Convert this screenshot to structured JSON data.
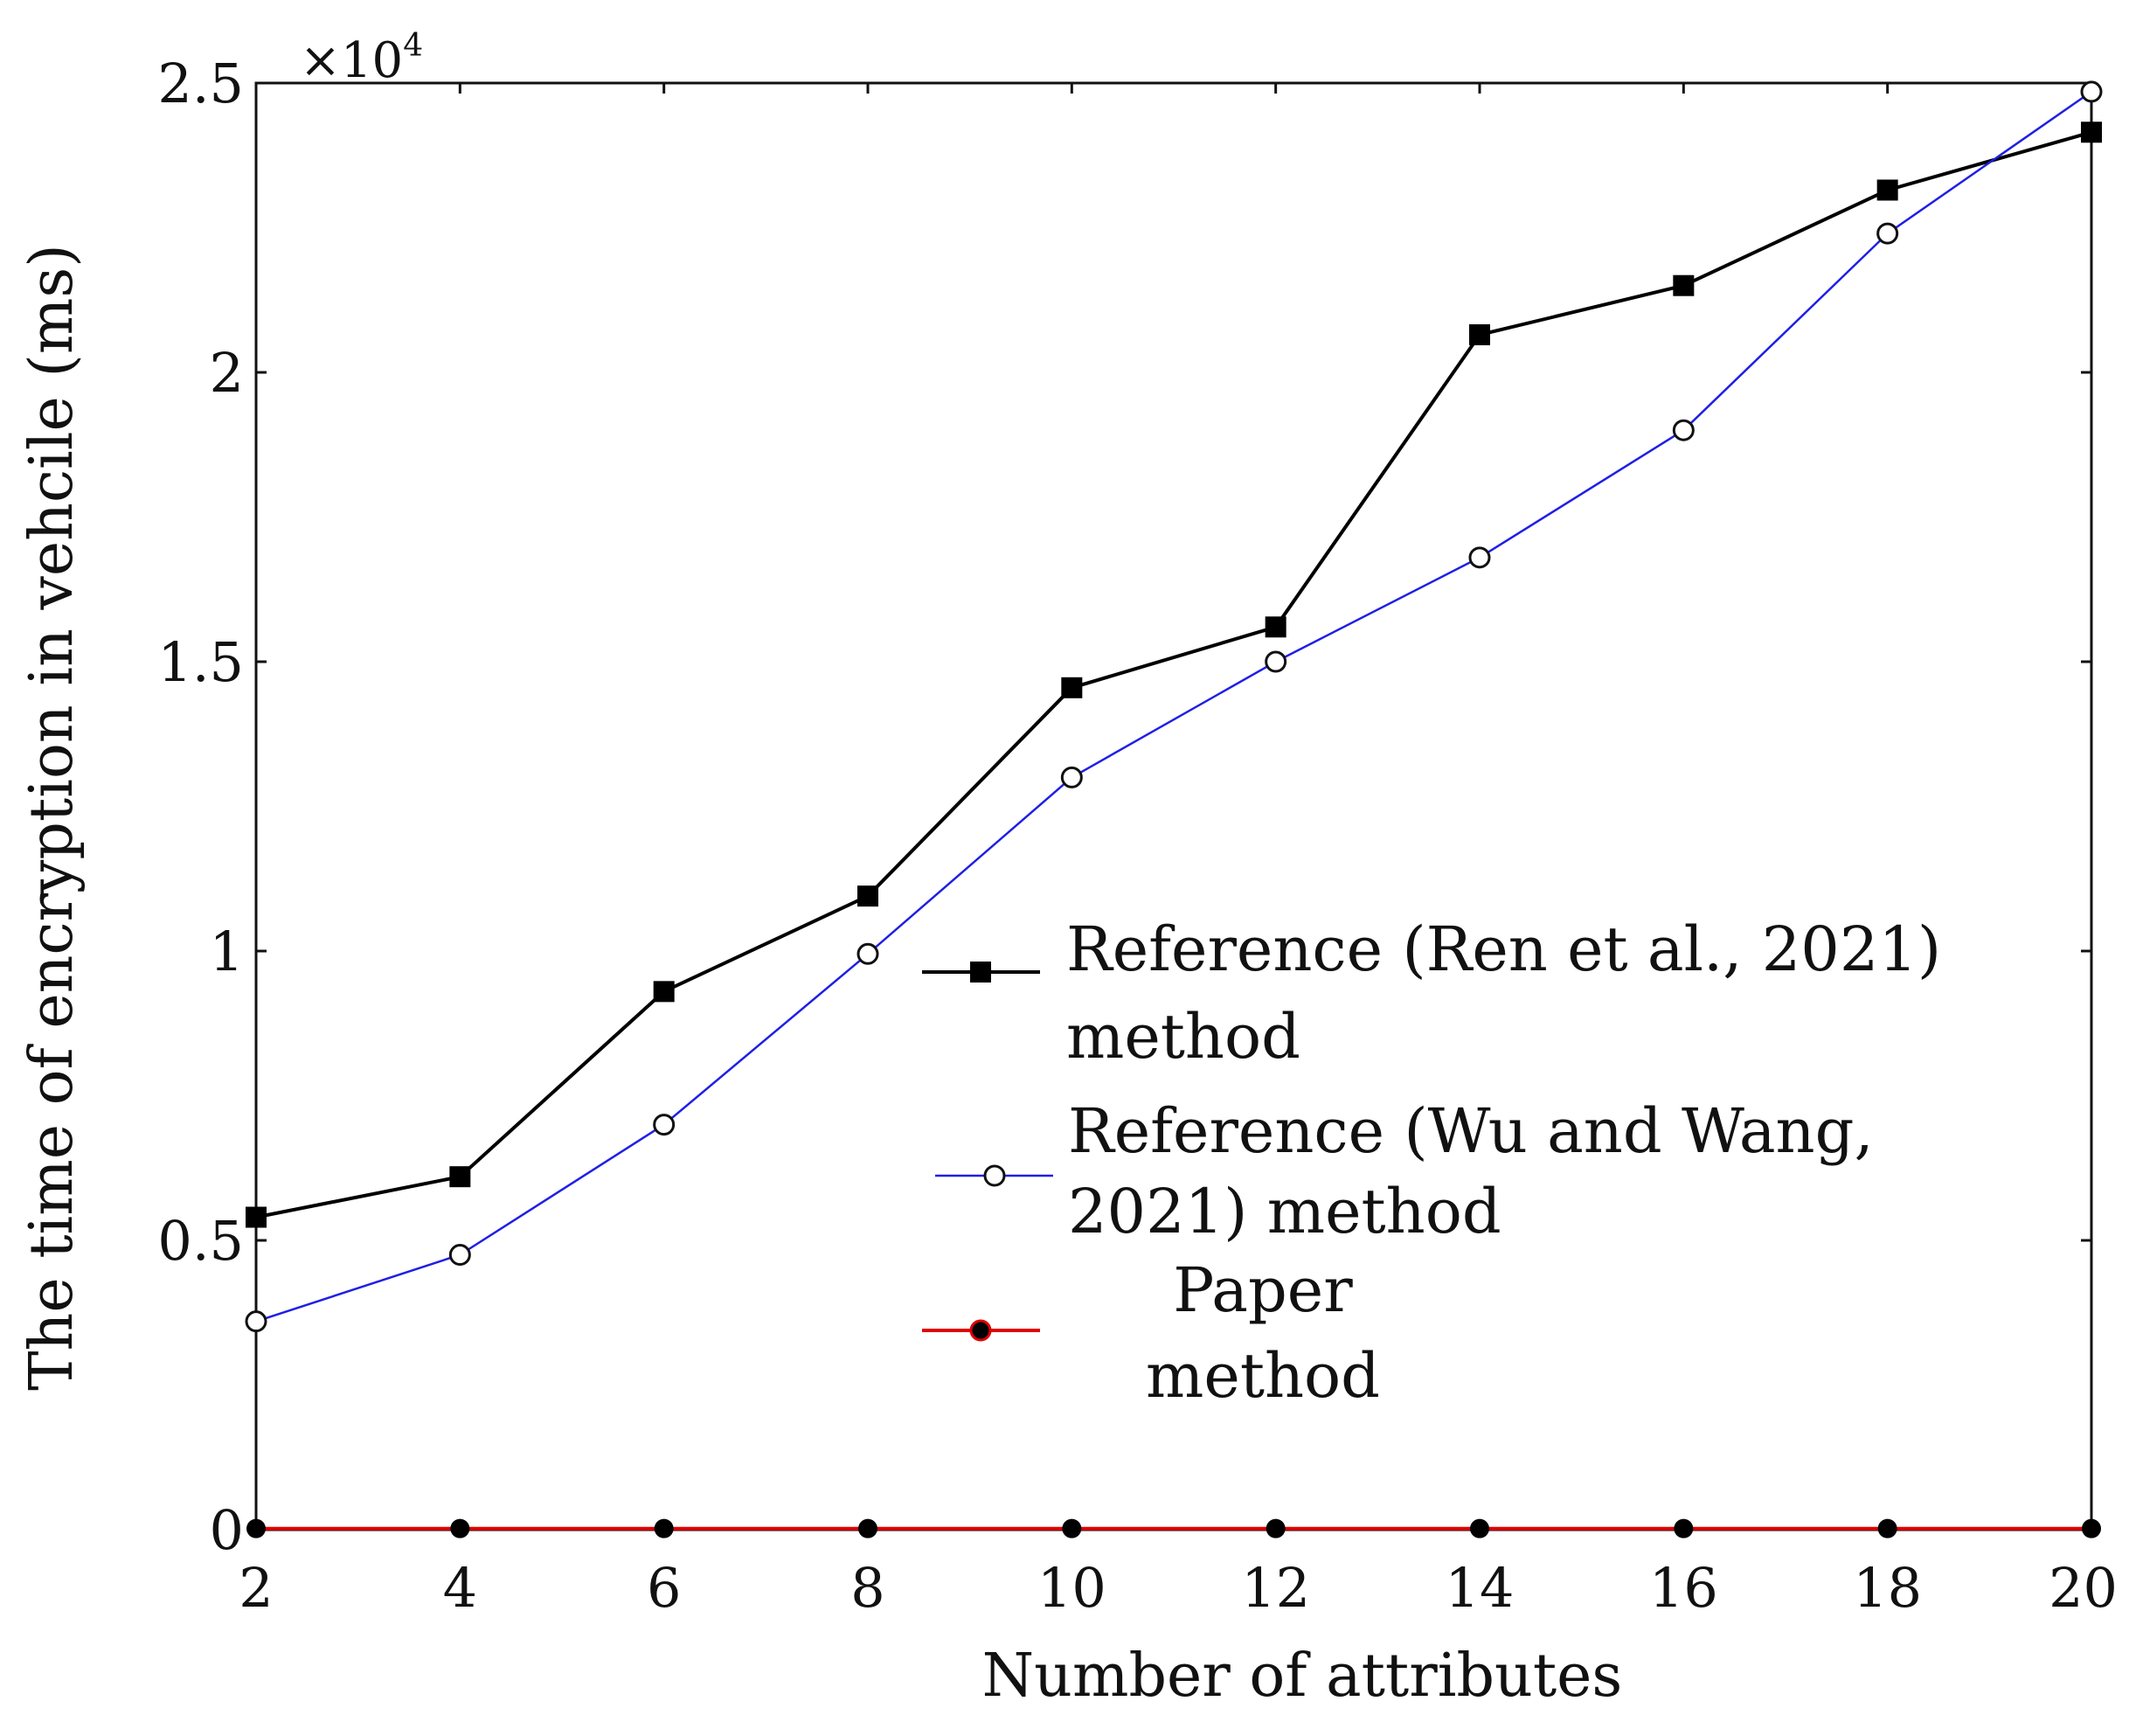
{
  "chart_data": {
    "type": "line",
    "title": "",
    "xlabel": "Number of attributes",
    "ylabel": "The time of encryption in vehcile (ms)",
    "xlim": [
      2,
      20
    ],
    "ylim": [
      0,
      25000
    ],
    "x_ticks": [
      2,
      4,
      6,
      8,
      10,
      12,
      14,
      16,
      18,
      20
    ],
    "x_tick_labels": [
      "2",
      "4",
      "6",
      "8",
      "10",
      "12",
      "14",
      "16",
      "18",
      "20"
    ],
    "y_ticks": [
      0,
      5000,
      10000,
      15000,
      20000,
      25000
    ],
    "y_tick_labels": [
      "0",
      "0.5",
      "1",
      "1.5",
      "2",
      "2.5"
    ],
    "y_exponent": {
      "base": "×10",
      "power": "4"
    },
    "grid": false,
    "legend_position": "center-right",
    "series": [
      {
        "name": "Reference (Ren et al., 2021) method",
        "legend_lines": [
          "Reference (Ren et al., 2021)",
          "method"
        ],
        "color": "#000000",
        "marker": "square",
        "x": [
          2,
          4,
          6,
          8,
          10,
          12,
          14,
          16,
          18,
          20
        ],
        "values": [
          5400,
          6100,
          9300,
          10950,
          14550,
          15600,
          20650,
          21500,
          23150,
          24150
        ]
      },
      {
        "name": "Reference (Wu and Wang, 2021) method",
        "legend_lines": [
          "Reference (Wu and Wang,",
          "2021) method"
        ],
        "color": "#1f1fe6",
        "marker": "open-circle",
        "x": [
          2,
          4,
          6,
          8,
          10,
          12,
          14,
          16,
          18,
          20
        ],
        "values": [
          3600,
          4750,
          7000,
          9950,
          13000,
          15000,
          16800,
          19000,
          22400,
          24850
        ]
      },
      {
        "name": "Paper method",
        "legend_lines": [
          "Paper",
          "method"
        ],
        "color": "#e00000",
        "marker": "filled-circle",
        "marker_color": "#000000",
        "x": [
          2,
          4,
          6,
          8,
          10,
          12,
          14,
          16,
          18,
          20
        ],
        "values": [
          20,
          20,
          20,
          20,
          20,
          20,
          20,
          20,
          20,
          20
        ]
      }
    ]
  }
}
